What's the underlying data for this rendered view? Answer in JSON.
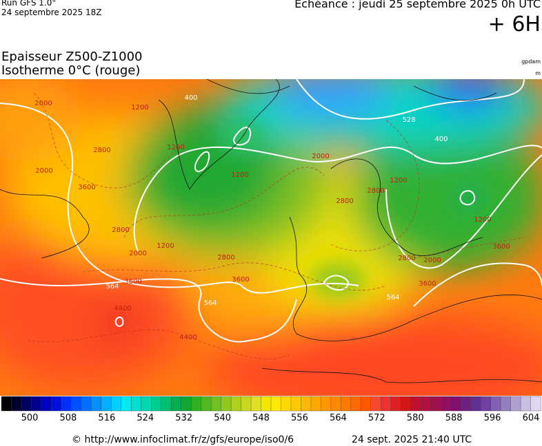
{
  "header": {
    "run": "Run GFS 1.0°",
    "run_date": "24 septembre 2025 18Z",
    "valid": "Echéance : jeudi 25 septembre 2025 0h UTC",
    "step": "+ 6H"
  },
  "title": {
    "line1": "Epaisseur Z500-Z1000",
    "line2": "Isotherme 0°C (rouge)",
    "unit1": "gpdam",
    "unit2": "m"
  },
  "map": {
    "labels": [
      "2000",
      "1200",
      "400",
      "2800",
      "3600",
      "1200",
      "1200",
      "2000",
      "2800",
      "2000",
      "1200",
      "2800",
      "2000",
      "528",
      "400",
      "1200",
      "1200",
      "2800",
      "2000",
      "3600",
      "564",
      "3600",
      "3600",
      "564",
      "4400",
      "4400",
      "2800",
      "2800",
      "3600",
      "564"
    ]
  },
  "colorbar": {
    "ticks": [
      500,
      508,
      516,
      524,
      532,
      540,
      548,
      556,
      564,
      572,
      580,
      588,
      596,
      604
    ],
    "colors": [
      "#000000",
      "#000030",
      "#000060",
      "#000090",
      "#0000c0",
      "#0010e0",
      "#0030ff",
      "#0050ff",
      "#0070ff",
      "#0090ff",
      "#00b0ff",
      "#00d0ff",
      "#00e8f0",
      "#00e0d0",
      "#00d8b0",
      "#00cc90",
      "#00c070",
      "#00b050",
      "#10a830",
      "#30b020",
      "#50b820",
      "#70c020",
      "#90c820",
      "#b0d020",
      "#c8d820",
      "#e0e020",
      "#f0e800",
      "#ffe800",
      "#ffd800",
      "#ffc800",
      "#ffb800",
      "#ffa800",
      "#ff9800",
      "#ff8800",
      "#ff7800",
      "#ff6800",
      "#ff5800",
      "#f84830",
      "#f03030",
      "#e02020",
      "#d01818",
      "#c01030",
      "#b01040",
      "#a01050",
      "#901060",
      "#801070",
      "#702080",
      "#603090",
      "#7040a0",
      "#8060b0",
      "#9080c0",
      "#b0a0d0",
      "#c8c0e0",
      "#e0d8f0"
    ]
  },
  "footer": {
    "source": "© http://www.infoclimat.fr/z/gfs/europe/iso0/6",
    "timestamp": "24 sept. 2025 21:40 UTC"
  }
}
